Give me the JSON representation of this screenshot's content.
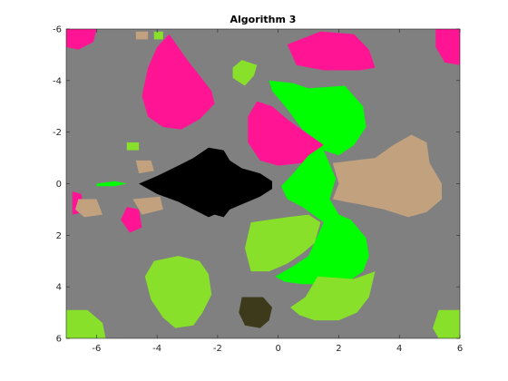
{
  "chart_data": {
    "type": "heatmap",
    "title": "Algorithm 3",
    "xlabel": "",
    "ylabel": "",
    "xlim": [
      -7,
      6
    ],
    "ylim": [
      -6,
      6
    ],
    "y_direction": "reversed",
    "x_ticks": [
      -6,
      -4,
      -2,
      0,
      2,
      4,
      6
    ],
    "x_tick_labels": [
      "-6",
      "-4",
      "-2",
      "0",
      "2",
      "4",
      "6"
    ],
    "y_ticks": [
      -6,
      -4,
      -2,
      0,
      2,
      4,
      6
    ],
    "y_tick_labels": [
      "-6",
      "-4",
      "-2",
      "0",
      "2",
      "4",
      "6"
    ],
    "grid": false,
    "legend": "none",
    "colors": {
      "background": "#808080",
      "magenta": "#ff1493",
      "bright_green": "#00ff00",
      "lime": "#88e02b",
      "tan": "#c2a27e",
      "black": "#000000",
      "dark_olive": "#3d3a1c"
    },
    "regions": [
      {
        "color": "magenta",
        "points": [
          [
            -3.6,
            -5.8
          ],
          [
            -3.0,
            -4.8
          ],
          [
            -2.6,
            -4.2
          ],
          [
            -2.2,
            -3.6
          ],
          [
            -2.1,
            -3.1
          ],
          [
            -2.6,
            -2.5
          ],
          [
            -3.2,
            -2.1
          ],
          [
            -3.8,
            -2.2
          ],
          [
            -4.3,
            -2.6
          ],
          [
            -4.5,
            -3.4
          ],
          [
            -4.3,
            -4.5
          ],
          [
            -4.0,
            -5.3
          ]
        ]
      },
      {
        "color": "magenta",
        "points": [
          [
            -0.7,
            -3.2
          ],
          [
            -0.2,
            -3.0
          ],
          [
            0.3,
            -2.5
          ],
          [
            1.0,
            -1.9
          ],
          [
            1.5,
            -1.5
          ],
          [
            0.8,
            -0.8
          ],
          [
            0.0,
            -0.7
          ],
          [
            -0.6,
            -0.9
          ],
          [
            -1.0,
            -1.6
          ],
          [
            -1.0,
            -2.6
          ]
        ]
      },
      {
        "color": "magenta",
        "points": [
          [
            0.3,
            -5.4
          ],
          [
            1.4,
            -5.9
          ],
          [
            2.5,
            -5.8
          ],
          [
            3.0,
            -5.2
          ],
          [
            3.2,
            -4.5
          ],
          [
            2.7,
            -4.4
          ],
          [
            1.5,
            -4.4
          ],
          [
            0.6,
            -4.6
          ]
        ]
      },
      {
        "color": "magenta",
        "points": [
          [
            5.2,
            -6.0
          ],
          [
            6.0,
            -6.0
          ],
          [
            6.0,
            -4.6
          ],
          [
            5.5,
            -4.7
          ],
          [
            5.2,
            -5.3
          ]
        ]
      },
      {
        "color": "magenta",
        "points": [
          [
            -7.0,
            -6.0
          ],
          [
            -6.0,
            -6.0
          ],
          [
            -6.1,
            -5.5
          ],
          [
            -6.6,
            -5.2
          ],
          [
            -7.0,
            -5.3
          ]
        ]
      },
      {
        "color": "magenta",
        "points": [
          [
            -5.0,
            0.9
          ],
          [
            -4.6,
            1.0
          ],
          [
            -4.5,
            1.7
          ],
          [
            -4.9,
            1.9
          ],
          [
            -5.2,
            1.4
          ]
        ]
      },
      {
        "color": "magenta",
        "points": [
          [
            -6.8,
            0.3
          ],
          [
            -6.5,
            0.4
          ],
          [
            -6.4,
            1.1
          ],
          [
            -6.8,
            1.2
          ]
        ]
      },
      {
        "color": "bright_green",
        "points": [
          [
            -0.3,
            -4.0
          ],
          [
            0.5,
            -3.9
          ],
          [
            1.0,
            -3.7
          ],
          [
            2.2,
            -3.8
          ],
          [
            2.8,
            -3.0
          ],
          [
            2.9,
            -2.2
          ],
          [
            2.5,
            -1.5
          ],
          [
            2.0,
            -1.1
          ],
          [
            1.5,
            -1.3
          ],
          [
            1.9,
            -0.2
          ],
          [
            1.7,
            0.6
          ],
          [
            2.0,
            1.2
          ],
          [
            2.4,
            1.4
          ],
          [
            2.9,
            2.1
          ],
          [
            3.0,
            2.8
          ],
          [
            2.8,
            3.4
          ],
          [
            2.2,
            3.9
          ],
          [
            1.5,
            3.9
          ],
          [
            0.8,
            3.9
          ],
          [
            0.2,
            3.8
          ],
          [
            -0.1,
            3.6
          ],
          [
            0.5,
            3.2
          ],
          [
            1.0,
            2.8
          ],
          [
            1.5,
            1.5
          ],
          [
            0.8,
            0.9
          ],
          [
            0.3,
            0.6
          ],
          [
            0.1,
            0.1
          ],
          [
            0.5,
            -0.4
          ],
          [
            1.0,
            -1.1
          ],
          [
            1.5,
            -1.5
          ],
          [
            0.8,
            -2.1
          ],
          [
            0.3,
            -2.9
          ],
          [
            -0.2,
            -3.6
          ]
        ]
      },
      {
        "color": "bright_green",
        "points": [
          [
            -6.0,
            0.0
          ],
          [
            -5.4,
            -0.1
          ],
          [
            -5.0,
            0.0
          ],
          [
            -5.4,
            0.1
          ],
          [
            -6.0,
            0.1
          ]
        ]
      },
      {
        "color": "lime",
        "points": [
          [
            -0.9,
            1.5
          ],
          [
            -0.3,
            1.4
          ],
          [
            0.3,
            1.3
          ],
          [
            1.0,
            1.2
          ],
          [
            1.4,
            1.5
          ],
          [
            1.2,
            2.3
          ],
          [
            0.8,
            2.7
          ],
          [
            0.3,
            3.1
          ],
          [
            -0.3,
            3.4
          ],
          [
            -0.9,
            3.4
          ],
          [
            -1.1,
            2.5
          ]
        ]
      },
      {
        "color": "lime",
        "points": [
          [
            -4.1,
            3.0
          ],
          [
            -3.3,
            2.8
          ],
          [
            -2.6,
            3.0
          ],
          [
            -2.3,
            3.5
          ],
          [
            -2.2,
            4.3
          ],
          [
            -2.5,
            5.0
          ],
          [
            -2.8,
            5.5
          ],
          [
            -3.4,
            5.6
          ],
          [
            -3.8,
            5.2
          ],
          [
            -4.2,
            4.5
          ],
          [
            -4.4,
            3.6
          ]
        ]
      },
      {
        "color": "lime",
        "points": [
          [
            1.3,
            3.6
          ],
          [
            2.5,
            3.7
          ],
          [
            3.2,
            3.4
          ],
          [
            3.0,
            4.4
          ],
          [
            2.6,
            5.0
          ],
          [
            2.0,
            5.3
          ],
          [
            1.2,
            5.3
          ],
          [
            0.7,
            5.1
          ],
          [
            0.4,
            4.8
          ],
          [
            0.9,
            4.4
          ]
        ]
      },
      {
        "color": "lime",
        "points": [
          [
            -7.0,
            4.9
          ],
          [
            -6.3,
            4.9
          ],
          [
            -5.8,
            5.4
          ],
          [
            -5.7,
            6.0
          ],
          [
            -7.0,
            6.0
          ]
        ]
      },
      {
        "color": "lime",
        "points": [
          [
            5.3,
            4.9
          ],
          [
            6.0,
            4.9
          ],
          [
            6.0,
            6.0
          ],
          [
            5.3,
            6.0
          ],
          [
            5.1,
            5.6
          ]
        ]
      },
      {
        "color": "lime",
        "points": [
          [
            -1.2,
            -4.8
          ],
          [
            -0.7,
            -4.6
          ],
          [
            -0.8,
            -4.2
          ],
          [
            -1.1,
            -3.8
          ],
          [
            -1.5,
            -4.1
          ],
          [
            -1.5,
            -4.5
          ]
        ]
      },
      {
        "color": "lime",
        "points": [
          [
            -5.0,
            -1.6
          ],
          [
            -4.6,
            -1.6
          ],
          [
            -4.6,
            -1.3
          ],
          [
            -5.0,
            -1.3
          ]
        ]
      },
      {
        "color": "lime",
        "points": [
          [
            -4.1,
            -5.9
          ],
          [
            -3.8,
            -5.9
          ],
          [
            -3.8,
            -5.6
          ],
          [
            -4.1,
            -5.6
          ]
        ]
      },
      {
        "color": "tan",
        "points": [
          [
            1.8,
            -0.8
          ],
          [
            2.5,
            -0.9
          ],
          [
            3.2,
            -1.0
          ],
          [
            3.8,
            -1.5
          ],
          [
            4.4,
            -1.9
          ],
          [
            4.9,
            -1.6
          ],
          [
            5.0,
            -0.8
          ],
          [
            5.4,
            0.0
          ],
          [
            5.4,
            0.6
          ],
          [
            4.9,
            1.1
          ],
          [
            4.3,
            1.3
          ],
          [
            3.5,
            1.0
          ],
          [
            2.7,
            0.8
          ],
          [
            2.2,
            0.7
          ],
          [
            1.8,
            0.6
          ],
          [
            2.0,
            0.0
          ]
        ]
      },
      {
        "color": "tan",
        "points": [
          [
            -6.6,
            0.6
          ],
          [
            -6.0,
            0.6
          ],
          [
            -5.8,
            1.2
          ],
          [
            -6.4,
            1.3
          ],
          [
            -6.7,
            1.0
          ]
        ]
      },
      {
        "color": "tan",
        "points": [
          [
            -4.8,
            0.6
          ],
          [
            -3.9,
            0.5
          ],
          [
            -3.8,
            1.0
          ],
          [
            -4.5,
            1.2
          ]
        ]
      },
      {
        "color": "tan",
        "points": [
          [
            -4.7,
            -0.9
          ],
          [
            -4.2,
            -0.9
          ],
          [
            -4.1,
            -0.5
          ],
          [
            -4.6,
            -0.4
          ]
        ]
      },
      {
        "color": "tan",
        "points": [
          [
            -4.7,
            -5.9
          ],
          [
            -4.3,
            -5.9
          ],
          [
            -4.3,
            -5.6
          ],
          [
            -4.7,
            -5.6
          ]
        ]
      },
      {
        "color": "black",
        "points": [
          [
            -4.6,
            0.0
          ],
          [
            -4.0,
            -0.3
          ],
          [
            -3.3,
            -0.7
          ],
          [
            -2.8,
            -1.0
          ],
          [
            -2.3,
            -1.4
          ],
          [
            -1.8,
            -1.3
          ],
          [
            -1.6,
            -0.9
          ],
          [
            -1.2,
            -0.6
          ],
          [
            -0.6,
            -0.4
          ],
          [
            -0.2,
            -0.1
          ],
          [
            -0.2,
            0.2
          ],
          [
            -0.6,
            0.5
          ],
          [
            -1.2,
            0.8
          ],
          [
            -1.6,
            1.0
          ],
          [
            -1.8,
            1.3
          ],
          [
            -2.1,
            1.2
          ],
          [
            -2.3,
            1.3
          ],
          [
            -2.8,
            1.0
          ],
          [
            -3.3,
            0.7
          ],
          [
            -4.0,
            0.4
          ]
        ]
      },
      {
        "color": "dark_olive",
        "points": [
          [
            -1.2,
            4.4
          ],
          [
            -0.5,
            4.4
          ],
          [
            -0.2,
            4.8
          ],
          [
            -0.3,
            5.3
          ],
          [
            -0.6,
            5.6
          ],
          [
            -1.1,
            5.5
          ],
          [
            -1.3,
            5.0
          ]
        ]
      }
    ]
  }
}
